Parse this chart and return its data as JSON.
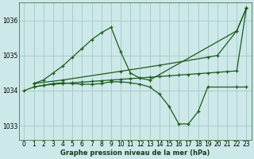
{
  "xlabel": "Graphe pression niveau de la mer (hPa)",
  "bg_color": "#cce8e8",
  "grid_color": "#aacccc",
  "line_color": "#1a5c1a",
  "ylim": [
    1032.6,
    1036.5
  ],
  "yticks": [
    1033,
    1034,
    1035,
    1036
  ],
  "xticks": [
    0,
    1,
    2,
    3,
    4,
    5,
    6,
    7,
    8,
    9,
    10,
    11,
    12,
    13,
    14,
    15,
    16,
    17,
    18,
    19,
    20,
    21,
    22,
    23
  ],
  "lines": [
    {
      "x": [
        0,
        1,
        2,
        3,
        4,
        5,
        6,
        7,
        8,
        9,
        10,
        11,
        12,
        13,
        14,
        15,
        16,
        17,
        18,
        19,
        20,
        21,
        22,
        23
      ],
      "y": [
        1034.0,
        1034.1,
        1034.15,
        1034.18,
        1034.2,
        1034.22,
        1034.24,
        1034.26,
        1034.28,
        1034.3,
        1034.32,
        1034.34,
        1034.36,
        1034.38,
        1034.4,
        1034.42,
        1034.44,
        1034.46,
        1034.48,
        1034.5,
        1034.52,
        1034.54,
        1034.56,
        1036.35
      ]
    },
    {
      "x": [
        1,
        2,
        3,
        4,
        5,
        6,
        7,
        8,
        9,
        10,
        11,
        12,
        13,
        22,
        23
      ],
      "y": [
        1034.2,
        1034.3,
        1034.5,
        1034.7,
        1034.95,
        1035.2,
        1035.45,
        1035.65,
        1035.8,
        1035.1,
        1034.5,
        1034.35,
        1034.3,
        1035.7,
        1036.35
      ]
    },
    {
      "x": [
        1,
        4,
        10,
        14,
        19,
        20,
        22,
        23
      ],
      "y": [
        1034.2,
        1034.3,
        1034.55,
        1034.72,
        1034.95,
        1035.0,
        1035.7,
        1036.35
      ]
    },
    {
      "x": [
        1,
        2,
        3,
        4,
        5,
        6,
        7,
        8,
        9,
        10,
        11,
        12,
        13,
        14,
        15,
        16,
        17,
        18,
        19,
        22,
        23
      ],
      "y": [
        1034.1,
        1034.15,
        1034.2,
        1034.22,
        1034.2,
        1034.18,
        1034.18,
        1034.2,
        1034.25,
        1034.25,
        1034.22,
        1034.18,
        1034.1,
        1033.9,
        1033.55,
        1033.05,
        1033.05,
        1033.4,
        1034.1,
        1034.1,
        1034.1
      ]
    }
  ]
}
